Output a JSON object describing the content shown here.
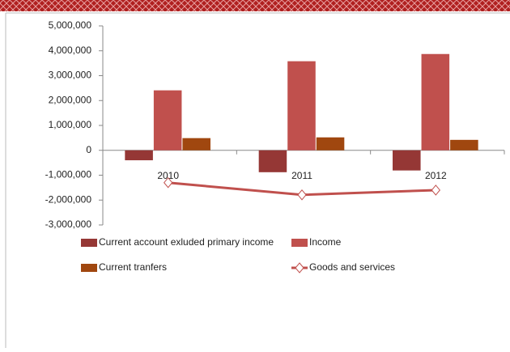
{
  "chart_data": {
    "type": "bar",
    "categories": [
      "2010",
      "2011",
      "2012"
    ],
    "series": [
      {
        "name": "Current account exluded primary income",
        "color": "#953735",
        "values": [
          -400000,
          -880000,
          -810000
        ]
      },
      {
        "name": "Income",
        "color": "#c0504d",
        "values": [
          2410000,
          3580000,
          3870000
        ]
      },
      {
        "name": "Current tranfers",
        "color": "#a0470f",
        "values": [
          490000,
          520000,
          420000
        ]
      },
      {
        "name": "Goods and services",
        "color": "#c0504d",
        "type": "line",
        "values": [
          -1300000,
          -1790000,
          -1600000
        ]
      }
    ],
    "ylim": [
      -3000000,
      5000000
    ],
    "yticks": [
      {
        "value": -3000000,
        "label": "-3,000,000"
      },
      {
        "value": -2000000,
        "label": "-2,000,000"
      },
      {
        "value": -1000000,
        "label": "-1,000,000"
      },
      0,
      {
        "value": 1000000,
        "label": "1,000,000"
      },
      {
        "value": 2000000,
        "label": "2,000,000"
      },
      {
        "value": 3000000,
        "label": "3,000,000"
      },
      {
        "value": 4000000,
        "label": "4,000,000"
      },
      {
        "value": 5000000,
        "label": "5,000,000"
      }
    ],
    "grid": false
  }
}
